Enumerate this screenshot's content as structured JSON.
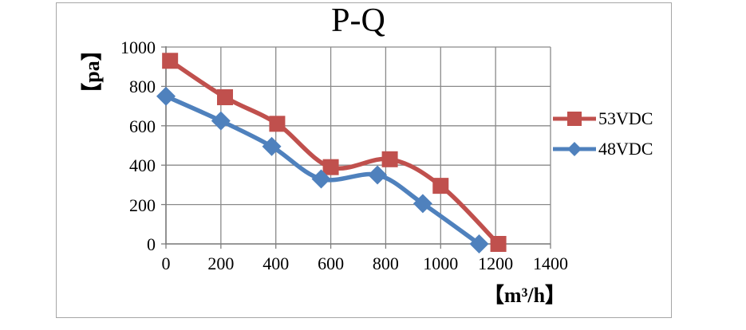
{
  "page": {
    "background": "#ffffff"
  },
  "chart_data": {
    "type": "line",
    "title": "P-Q",
    "xlabel": "【m³/h】",
    "ylabel": "【pa】",
    "xlim": [
      0,
      1400
    ],
    "ylim": [
      0,
      1000
    ],
    "x_ticks": [
      0,
      200,
      400,
      600,
      800,
      1000,
      1200,
      1400
    ],
    "y_ticks": [
      0,
      200,
      400,
      600,
      800,
      1000
    ],
    "grid": true,
    "grid_color": "#8a8a8a",
    "axis_color": "#7f7f7f",
    "frame_color": "#a6a6a6",
    "legend_position": "right",
    "line_smoothing": true,
    "series": [
      {
        "name": "53VDC",
        "color": "#c0504d",
        "marker": "square",
        "x": [
          15,
          215,
          405,
          600,
          815,
          1000,
          1210
        ],
        "y": [
          930,
          745,
          610,
          390,
          430,
          295,
          0
        ]
      },
      {
        "name": "48VDC",
        "color": "#4f81bd",
        "marker": "diamond",
        "x": [
          0,
          200,
          385,
          565,
          770,
          935,
          1140
        ],
        "y": [
          750,
          625,
          495,
          330,
          350,
          205,
          0
        ]
      }
    ]
  }
}
